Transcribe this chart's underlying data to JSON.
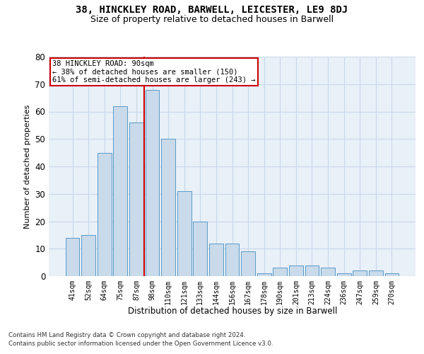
{
  "title": "38, HINCKLEY ROAD, BARWELL, LEICESTER, LE9 8DJ",
  "subtitle": "Size of property relative to detached houses in Barwell",
  "xlabel": "Distribution of detached houses by size in Barwell",
  "ylabel": "Number of detached properties",
  "categories": [
    "41sqm",
    "52sqm",
    "64sqm",
    "75sqm",
    "87sqm",
    "98sqm",
    "110sqm",
    "121sqm",
    "133sqm",
    "144sqm",
    "156sqm",
    "167sqm",
    "178sqm",
    "190sqm",
    "201sqm",
    "213sqm",
    "224sqm",
    "236sqm",
    "247sqm",
    "259sqm",
    "270sqm"
  ],
  "values": [
    14,
    15,
    45,
    62,
    56,
    68,
    50,
    31,
    20,
    12,
    12,
    9,
    1,
    3,
    4,
    4,
    3,
    1,
    2,
    2,
    1
  ],
  "bar_color": "#c9daea",
  "bar_edge_color": "#5a9ac8",
  "vline_x": 4.5,
  "vline_color": "#cc0000",
  "annotation_text_line1": "38 HINCKLEY ROAD: 90sqm",
  "annotation_text_line2": "← 38% of detached houses are smaller (150)",
  "annotation_text_line3": "61% of semi-detached houses are larger (243) →",
  "annotation_box_facecolor": "#ffffff",
  "annotation_box_edgecolor": "#cc0000",
  "grid_color": "#c8d8e8",
  "background_color": "#e8f0f8",
  "ylim": [
    0,
    80
  ],
  "yticks": [
    0,
    10,
    20,
    30,
    40,
    50,
    60,
    70,
    80
  ],
  "footnote1": "Contains HM Land Registry data © Crown copyright and database right 2024.",
  "footnote2": "Contains public sector information licensed under the Open Government Licence v3.0."
}
